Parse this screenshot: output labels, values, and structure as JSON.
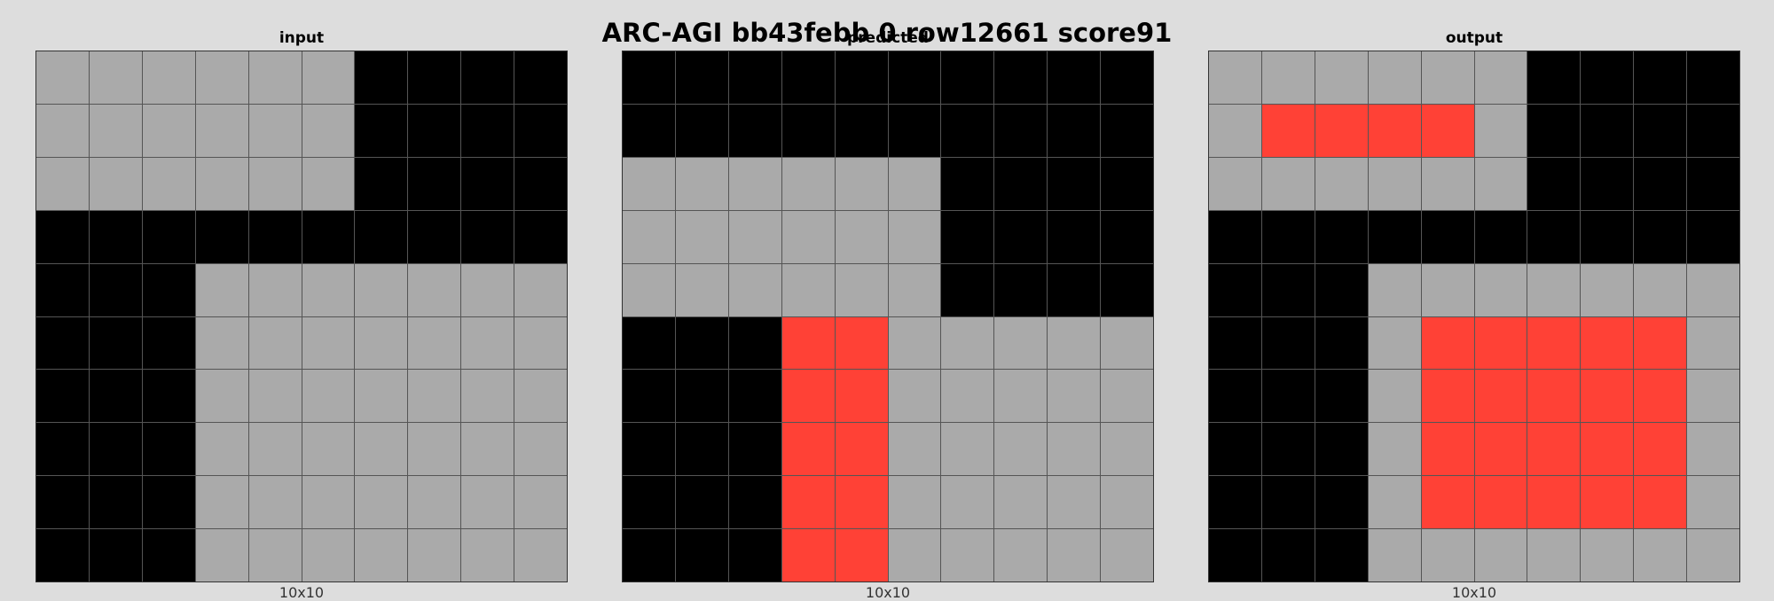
{
  "title": "ARC-AGI bb43febb 0 row12661 score91",
  "colors": {
    "0": "#000000",
    "2": "#ff4136",
    "5": "#aaaaaa"
  },
  "panels": [
    {
      "label": "input",
      "size_label": "10x10",
      "grid": [
        [
          5,
          5,
          5,
          5,
          5,
          5,
          0,
          0,
          0,
          0
        ],
        [
          5,
          5,
          5,
          5,
          5,
          5,
          0,
          0,
          0,
          0
        ],
        [
          5,
          5,
          5,
          5,
          5,
          5,
          0,
          0,
          0,
          0
        ],
        [
          0,
          0,
          0,
          0,
          0,
          0,
          0,
          0,
          0,
          0
        ],
        [
          0,
          0,
          0,
          5,
          5,
          5,
          5,
          5,
          5,
          5
        ],
        [
          0,
          0,
          0,
          5,
          5,
          5,
          5,
          5,
          5,
          5
        ],
        [
          0,
          0,
          0,
          5,
          5,
          5,
          5,
          5,
          5,
          5
        ],
        [
          0,
          0,
          0,
          5,
          5,
          5,
          5,
          5,
          5,
          5
        ],
        [
          0,
          0,
          0,
          5,
          5,
          5,
          5,
          5,
          5,
          5
        ],
        [
          0,
          0,
          0,
          5,
          5,
          5,
          5,
          5,
          5,
          5
        ]
      ]
    },
    {
      "label": "predicted",
      "size_label": "10x10",
      "grid": [
        [
          0,
          0,
          0,
          0,
          0,
          0,
          0,
          0,
          0,
          0
        ],
        [
          0,
          0,
          0,
          0,
          0,
          0,
          0,
          0,
          0,
          0
        ],
        [
          5,
          5,
          5,
          5,
          5,
          5,
          0,
          0,
          0,
          0
        ],
        [
          5,
          5,
          5,
          5,
          5,
          5,
          0,
          0,
          0,
          0
        ],
        [
          5,
          5,
          5,
          5,
          5,
          5,
          0,
          0,
          0,
          0
        ],
        [
          0,
          0,
          0,
          2,
          2,
          5,
          5,
          5,
          5,
          5
        ],
        [
          0,
          0,
          0,
          2,
          2,
          5,
          5,
          5,
          5,
          5
        ],
        [
          0,
          0,
          0,
          2,
          2,
          5,
          5,
          5,
          5,
          5
        ],
        [
          0,
          0,
          0,
          2,
          2,
          5,
          5,
          5,
          5,
          5
        ],
        [
          0,
          0,
          0,
          2,
          2,
          5,
          5,
          5,
          5,
          5
        ]
      ]
    },
    {
      "label": "output",
      "size_label": "10x10",
      "grid": [
        [
          5,
          5,
          5,
          5,
          5,
          5,
          0,
          0,
          0,
          0
        ],
        [
          5,
          2,
          2,
          2,
          2,
          5,
          0,
          0,
          0,
          0
        ],
        [
          5,
          5,
          5,
          5,
          5,
          5,
          0,
          0,
          0,
          0
        ],
        [
          0,
          0,
          0,
          0,
          0,
          0,
          0,
          0,
          0,
          0
        ],
        [
          0,
          0,
          0,
          5,
          5,
          5,
          5,
          5,
          5,
          5
        ],
        [
          0,
          0,
          0,
          5,
          2,
          2,
          2,
          2,
          2,
          5
        ],
        [
          0,
          0,
          0,
          5,
          2,
          2,
          2,
          2,
          2,
          5
        ],
        [
          0,
          0,
          0,
          5,
          2,
          2,
          2,
          2,
          2,
          5
        ],
        [
          0,
          0,
          0,
          5,
          2,
          2,
          2,
          2,
          2,
          5
        ],
        [
          0,
          0,
          0,
          5,
          5,
          5,
          5,
          5,
          5,
          5
        ]
      ]
    }
  ]
}
